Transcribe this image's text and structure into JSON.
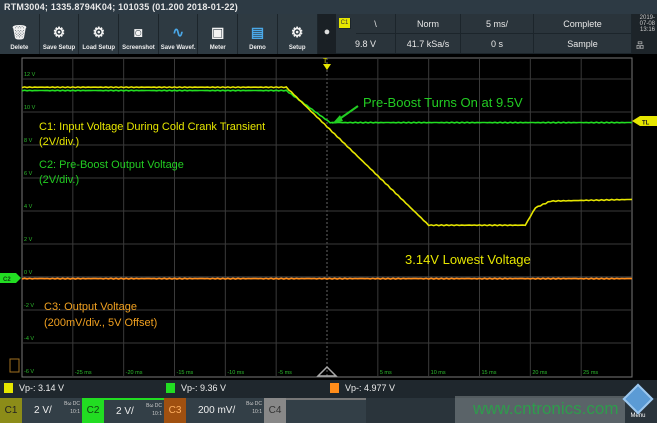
{
  "title": "RTM3004; 1335.8794K04; 101035 (01.200 2018-01-22)",
  "toolbar": [
    {
      "label": "Delete",
      "icon": "trash-icon"
    },
    {
      "label": "Save Setup",
      "icon": "gear-save-icon"
    },
    {
      "label": "Load Setup",
      "icon": "gear-load-icon"
    },
    {
      "label": "Screenshot",
      "icon": "camera-icon"
    },
    {
      "label": "Save Wavef.",
      "icon": "waveform-save-icon"
    },
    {
      "label": "Meter",
      "icon": "meter-icon"
    },
    {
      "label": "Demo",
      "icon": "demo-icon"
    },
    {
      "label": "Setup",
      "icon": "gear-icon"
    }
  ],
  "status": {
    "trigger_source": "C1",
    "slope": "\\",
    "mode": "Norm",
    "timebase": "5 ms/",
    "acq_state": "Complete",
    "level": "9.8 V",
    "sample_rate": "41.7 kSa/s",
    "position": "0 s",
    "acq_mode": "Sample"
  },
  "datetime": {
    "date": "2019-07-08",
    "time": "13:16"
  },
  "colors": {
    "c1": "#e6e600",
    "c2": "#22dd22",
    "c3": "#ff8c1a",
    "grid": "#3a3a3a",
    "axis_label": "#2dbb2d"
  },
  "axis": {
    "y_labels": [
      "12 V",
      "10 V",
      "8 V",
      "6 V",
      "4 V",
      "2 V",
      "0 V",
      "-2 V",
      "-4 V",
      "-6 V"
    ],
    "x_labels": [
      "-25 ms",
      "-20 ms",
      "-15 ms",
      "-10 ms",
      "-5 ms",
      "5 ms",
      "10 ms",
      "15 ms",
      "20 ms",
      "25 ms"
    ]
  },
  "annotations": {
    "c1_title": "C1: Input Voltage During Cold Crank Transient",
    "c1_scale": "(2V/div.)",
    "c2_title": "C2: Pre-Boost Output Voltage",
    "c2_scale": "(2V/div.)",
    "c3_title": "C3: Output Voltage",
    "c3_scale": "(200mV/div., 5V Offset)",
    "preboost": "Pre-Boost Turns On at 9.5V",
    "lowest": "3.14V Lowest Voltage"
  },
  "markers": {
    "trigger": "T",
    "trigger_level": "TL",
    "c2_ground": "C2"
  },
  "waveforms": {
    "time_unit": "ms",
    "voltage_unit": "V",
    "c1": [
      [
        -30,
        11.5
      ],
      [
        -4,
        11.5
      ],
      [
        10,
        3.14
      ],
      [
        19.5,
        3.14
      ],
      [
        20.5,
        4.2
      ],
      [
        22,
        4.6
      ],
      [
        30,
        4.7
      ]
    ],
    "c2": [
      [
        -30,
        11.3
      ],
      [
        -4,
        11.3
      ],
      [
        0.3,
        9.36
      ],
      [
        30,
        9.36
      ]
    ],
    "c3": [
      [
        -30,
        -0.1
      ],
      [
        30,
        -0.1
      ]
    ]
  },
  "measurements": [
    {
      "channel": "C1",
      "text": "Vp-: 3.14 V"
    },
    {
      "channel": "C2",
      "text": "Vp-: 9.36 V"
    },
    {
      "channel": "C3",
      "text": "Vp-: 4.977 V"
    }
  ],
  "channels": [
    {
      "name": "C1",
      "scale": "2 V/",
      "coupling": "Bω DC",
      "probe": "10:1"
    },
    {
      "name": "C2",
      "scale": "2 V/",
      "coupling": "Bω DC",
      "probe": "10:1"
    },
    {
      "name": "C3",
      "scale": "200 mV/",
      "coupling": "Bω DC",
      "probe": "10:1"
    },
    {
      "name": "C4"
    }
  ],
  "watermark": "www.cntronics.com",
  "menu_label": "Menu"
}
